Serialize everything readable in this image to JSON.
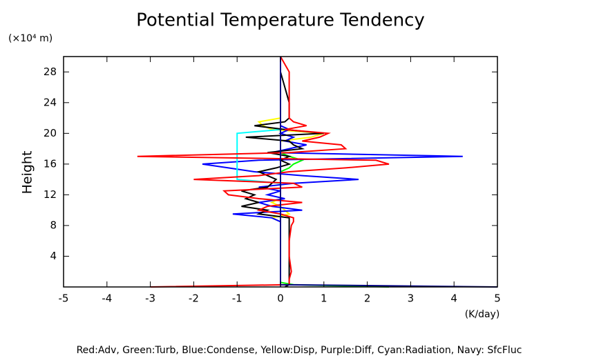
{
  "chart_data": {
    "type": "line",
    "title": "Potential Temperature Tendency",
    "y_unit": "(×10⁴ m)",
    "y_label": "Height",
    "x_unit": "(K/day)",
    "footnote": "Red:Adv, Green:Turb, Blue:Condense, Yellow:Disp, Purple:Diff, Cyan:Radiation, Navy: SfcFluc",
    "xlim": [
      -5,
      5
    ],
    "xticks": [
      -5,
      -4,
      -3,
      -2,
      -1,
      0,
      1,
      2,
      3,
      4,
      5
    ],
    "ylim": [
      0,
      30
    ],
    "yticks": [
      4,
      8,
      12,
      16,
      20,
      24,
      28
    ],
    "heights": [
      0,
      0.3,
      0.6,
      1,
      2,
      4,
      6,
      8,
      8.5,
      9,
      9.5,
      10,
      10.5,
      11,
      11.5,
      12,
      12.5,
      13,
      13.5,
      14,
      14.5,
      15,
      15.5,
      16,
      16.5,
      17,
      17.5,
      18,
      18.5,
      19,
      19.5,
      20,
      20.5,
      21,
      21.5,
      22,
      24,
      26,
      28,
      30
    ],
    "series": [
      {
        "color": "#ffff00",
        "values": [
          0,
          0,
          0,
          0,
          0,
          0,
          0,
          0,
          0,
          -0.2,
          0.2,
          0.1,
          0,
          -0.2,
          0,
          0,
          0,
          0,
          0,
          0,
          0,
          0,
          0,
          0,
          0,
          0,
          0,
          0,
          0,
          0,
          0.7,
          1,
          -0.2,
          -0.4,
          -0.5,
          0,
          0,
          0,
          0,
          0
        ]
      },
      {
        "color": "#00ff00",
        "values": [
          2.5,
          0.3,
          0,
          0,
          0,
          0,
          0,
          0,
          0,
          0,
          0,
          0,
          0,
          0,
          0,
          0,
          0,
          0,
          0,
          0,
          0,
          0,
          0.2,
          0.3,
          0.5,
          0.2,
          0,
          0,
          0,
          0,
          0,
          0,
          0,
          0,
          0,
          0,
          0,
          0,
          0,
          0
        ]
      },
      {
        "color": "#0000ff",
        "values": [
          0,
          0,
          0,
          0,
          0,
          0,
          0,
          0,
          0,
          -0.2,
          -1.1,
          0.5,
          -0.2,
          -0.5,
          0.1,
          -0.3,
          0,
          -0.5,
          0.3,
          1.8,
          0.5,
          -0.6,
          -1.2,
          -1.8,
          -0.5,
          4.2,
          -0.2,
          0.2,
          0.6,
          0.1,
          0.3,
          0,
          0.2,
          0,
          0,
          0,
          0,
          0,
          0,
          0
        ]
      },
      {
        "color": "#00ffff",
        "values": [
          0,
          0,
          0,
          0,
          0,
          0,
          0,
          0,
          0,
          0,
          0,
          0,
          0,
          0,
          0,
          0,
          0,
          0,
          0,
          -1,
          -1,
          -1,
          -1,
          -1,
          -1,
          -1,
          -1,
          -1,
          -1,
          -1,
          -1,
          -1,
          0,
          0,
          0,
          0,
          0,
          0,
          0,
          0
        ]
      },
      {
        "color": "#a020f0",
        "values": [
          0,
          0,
          0,
          0,
          0,
          0,
          0,
          0,
          0,
          0,
          0,
          0,
          0,
          0,
          0,
          0,
          0,
          0,
          0,
          0,
          0,
          0,
          0,
          0,
          0,
          0,
          0,
          0,
          0,
          0,
          0,
          0,
          0,
          0,
          0,
          0,
          0,
          0,
          0,
          0
        ]
      },
      {
        "color": "#000000",
        "values": [
          0.1,
          0.2,
          0.2,
          0.2,
          0.2,
          0.2,
          0.2,
          0.2,
          0.2,
          0.2,
          -0.5,
          -0.3,
          -0.9,
          -0.5,
          -0.8,
          -0.6,
          -0.9,
          -0.3,
          -0.2,
          -0.1,
          -0.3,
          -0.5,
          -0.1,
          0.2,
          0,
          0.2,
          -0.3,
          0.5,
          0.3,
          0.2,
          -0.8,
          1,
          0.1,
          -0.6,
          0.1,
          0.2,
          0.2,
          0.1,
          0,
          0
        ]
      },
      {
        "color": "#ff0000",
        "values": [
          -3,
          0.2,
          0.2,
          0.2,
          0.25,
          0.2,
          0.2,
          0.25,
          0.3,
          0.3,
          0,
          -0.5,
          -0.3,
          0.5,
          -0.5,
          -1.2,
          -1.3,
          0.5,
          0.3,
          -2,
          -0.5,
          0.2,
          1.5,
          2.5,
          2.2,
          -3.3,
          0.2,
          1.5,
          1.4,
          0.5,
          0.9,
          1.1,
          0.1,
          0.6,
          0.3,
          0.2,
          0.2,
          0.2,
          0.2,
          0
        ]
      },
      {
        "color": "#000080",
        "values": [
          5,
          0,
          0,
          0,
          0,
          0,
          0,
          0,
          0,
          0,
          0,
          0,
          0,
          0,
          0,
          0,
          0,
          0,
          0,
          0,
          0,
          0,
          0,
          0,
          0,
          0,
          0,
          0,
          0,
          0,
          0,
          0,
          0,
          0,
          0,
          0,
          0,
          0,
          0,
          0
        ]
      }
    ]
  }
}
